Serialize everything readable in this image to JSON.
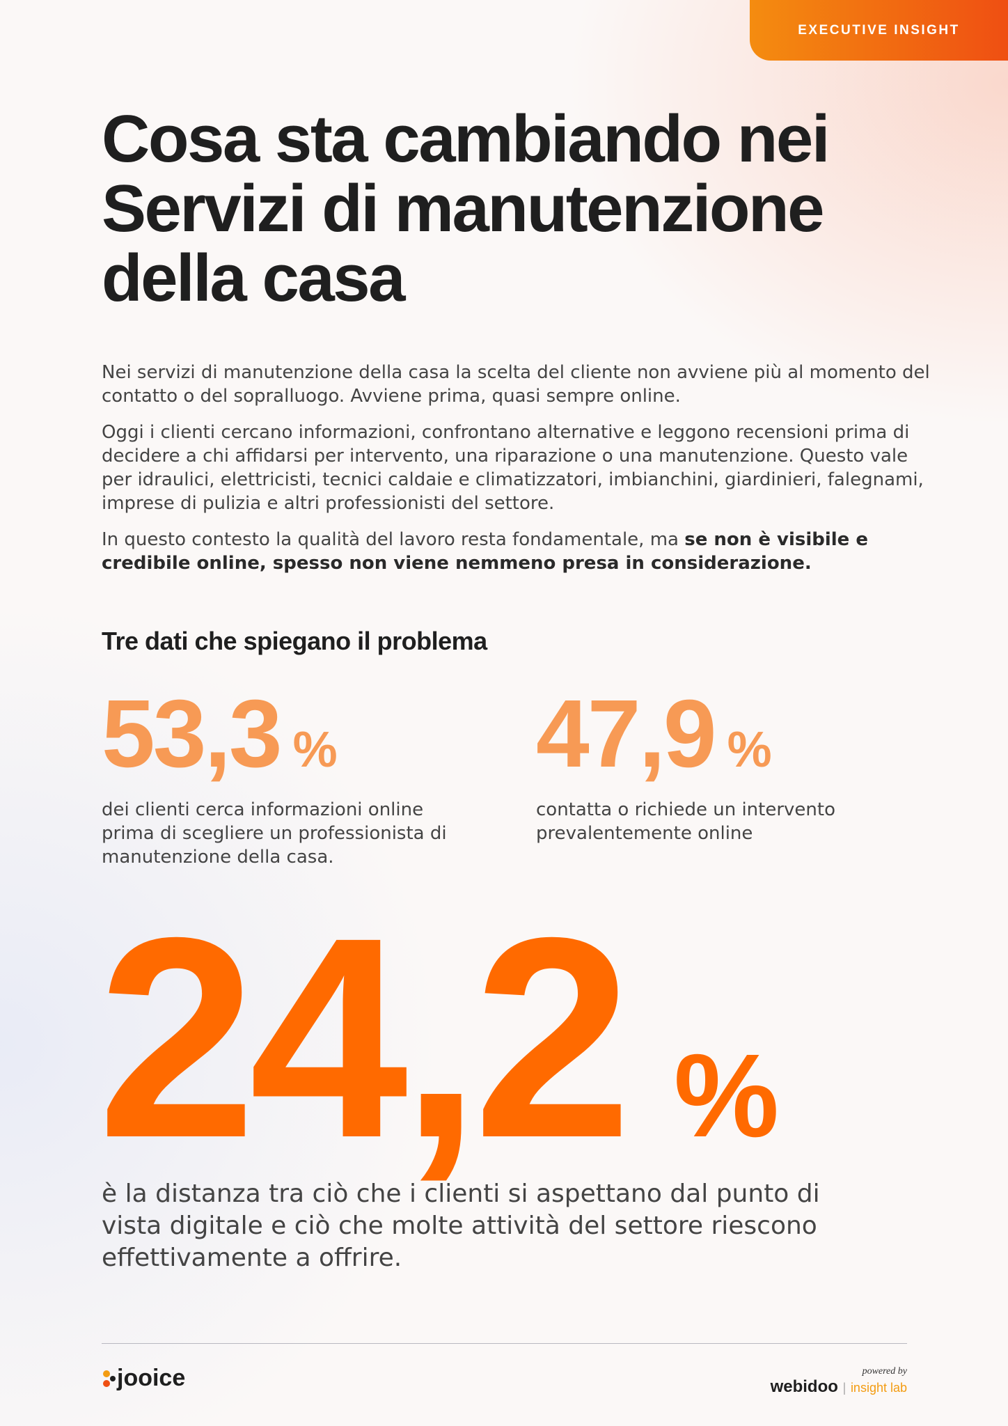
{
  "header": {
    "badge": "EXECUTIVE INSIGHT"
  },
  "title": [
    "Cosa sta cambiando nei",
    "Servizi di manutenzione",
    "della casa"
  ],
  "intro": [
    [
      {
        "text": "Nei servizi di manutenzione della casa la scelta del cliente non avviene più al momento del contatto o del sopralluogo. Avviene prima, quasi sempre online."
      }
    ],
    [
      {
        "text": "Oggi i clienti cercano informazioni, confrontano alternative e leggono recensioni prima di decidere a chi affidarsi per intervento, una riparazione o una manutenzione. Questo vale per idraulici, elettricisti, tecnici caldaie e climatizzatori, imbianchini, giardinieri, falegnami, imprese di pulizia e altri professionisti del settore."
      }
    ],
    [
      {
        "text": "In questo contesto la qualità del lavoro resta fondamentale, ma "
      },
      {
        "bold": "se non è visibile e credibile online, spesso non viene nemmeno presa in considerazione."
      }
    ]
  ],
  "section_title": "Tre dati che spiegano il problema",
  "stats": [
    {
      "value": "53,3",
      "unit": "%",
      "description": "dei clienti cerca informazioni online prima di scegliere un professionista di manutenzione della casa."
    },
    {
      "value": "47,9",
      "unit": "%",
      "description": "contatta o richiede un intervento prevalentemente online"
    }
  ],
  "big_stat": {
    "value": "24,2",
    "unit": "%",
    "description": "è la distanza tra ciò che i clienti si aspettano dal punto di vista digitale e ciò che molte attività del settore riescono effettivamente a offrire."
  },
  "footer": {
    "left_logo": "jooice",
    "powered_by": "powered by",
    "right_logo": "webidoo",
    "right_logo_sub": "insight lab"
  }
}
